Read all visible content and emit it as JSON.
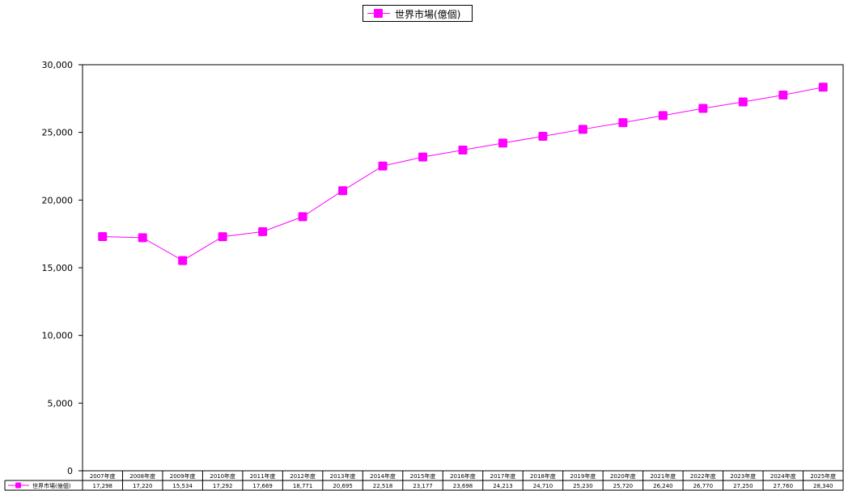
{
  "legend": {
    "label": "世界市場(億個)"
  },
  "chart_data": {
    "type": "line",
    "categories": [
      "2007年度",
      "2008年度",
      "2009年度",
      "2010年度",
      "2011年度",
      "2012年度",
      "2013年度",
      "2014年度",
      "2015年度",
      "2016年度",
      "2017年度",
      "2018年度",
      "2019年度",
      "2020年度",
      "2021年度",
      "2022年度",
      "2023年度",
      "2024年度",
      "2025年度"
    ],
    "series": [
      {
        "name": "世界市場(億個)",
        "values": [
          17298,
          17220,
          15534,
          17292,
          17669,
          18771,
          20695,
          22518,
          23177,
          23698,
          24213,
          24710,
          25230,
          25720,
          26240,
          26770,
          27250,
          27760,
          28340
        ],
        "labels": [
          "17,298",
          "17,220",
          "15,534",
          "17,292",
          "17,669",
          "18,771",
          "20,695",
          "22,518",
          "23,177",
          "23,698",
          "24,213",
          "24,710",
          "25,230",
          "25,720",
          "26,240",
          "26,770",
          "27,250",
          "27,760",
          "28,340"
        ],
        "color": "#ff00ff"
      }
    ],
    "ylim": [
      0,
      30000
    ],
    "yticks": [
      0,
      5000,
      10000,
      15000,
      20000,
      25000,
      30000
    ],
    "ytick_labels": [
      "0",
      "5,000",
      "10,000",
      "15,000",
      "20,000",
      "25,000",
      "30,000"
    ],
    "legend_position": "top-center",
    "data_table": true,
    "grid": false
  }
}
